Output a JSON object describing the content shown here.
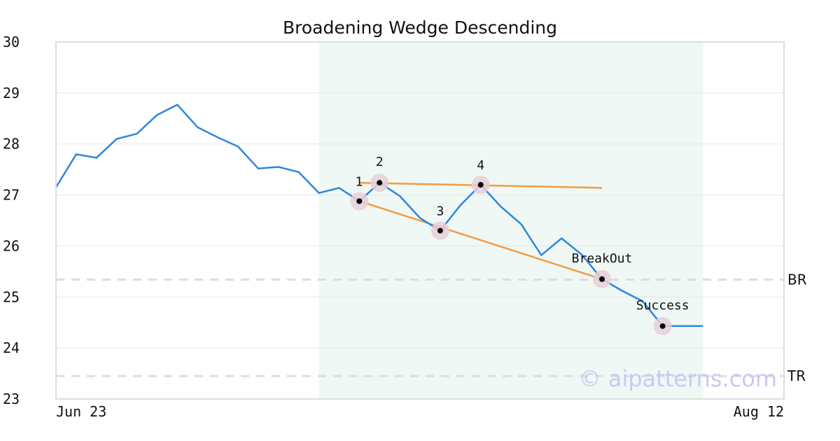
{
  "chart_data": {
    "type": "line",
    "title": "Broadening Wedge Descending",
    "xlabel": "",
    "ylabel": "",
    "ylim": [
      23,
      30
    ],
    "yticks": [
      23,
      24,
      25,
      26,
      27,
      28,
      29,
      30
    ],
    "x_tick_labels": [
      "Jun 23",
      "Aug 12"
    ],
    "x_index_range": [
      0,
      36
    ],
    "grid": true,
    "colors": {
      "price": "#2e86de",
      "trendline": "#f59a42",
      "highlight": "#e6f4ee",
      "marker_halo": "#e8cfd8",
      "marker_dot": "#000000",
      "level_line": "#dddddd"
    },
    "series": [
      {
        "values": [
          27.15,
          27.8,
          27.73,
          28.1,
          28.2,
          28.57,
          28.77,
          28.33,
          28.13,
          27.95,
          27.52,
          27.55,
          27.45,
          27.04,
          27.14,
          26.88,
          27.24,
          26.98,
          26.55,
          26.3,
          26.8,
          27.2,
          26.77,
          26.43,
          25.82,
          26.15,
          25.83,
          25.35,
          25.12,
          24.92,
          24.43,
          24.43,
          24.43
        ]
      }
    ],
    "highlight_range": [
      13,
      32
    ],
    "trendlines": [
      {
        "from": [
          15,
          27.24
        ],
        "to": [
          27,
          27.14
        ]
      },
      {
        "from": [
          15,
          26.88
        ],
        "to": [
          27,
          25.35
        ]
      }
    ],
    "points": [
      {
        "label": "1",
        "x": 15,
        "y": 26.88
      },
      {
        "label": "2",
        "x": 16,
        "y": 27.24
      },
      {
        "label": "3",
        "x": 19,
        "y": 26.3
      },
      {
        "label": "4",
        "x": 21,
        "y": 27.2
      },
      {
        "label": "BreakOut",
        "x": 27,
        "y": 25.35
      },
      {
        "label": "Success",
        "x": 30,
        "y": 24.43
      }
    ],
    "levels": [
      {
        "label": "BR",
        "y": 25.34
      },
      {
        "label": "TR",
        "y": 23.45
      }
    ],
    "watermark": "© aipatterns.com"
  }
}
